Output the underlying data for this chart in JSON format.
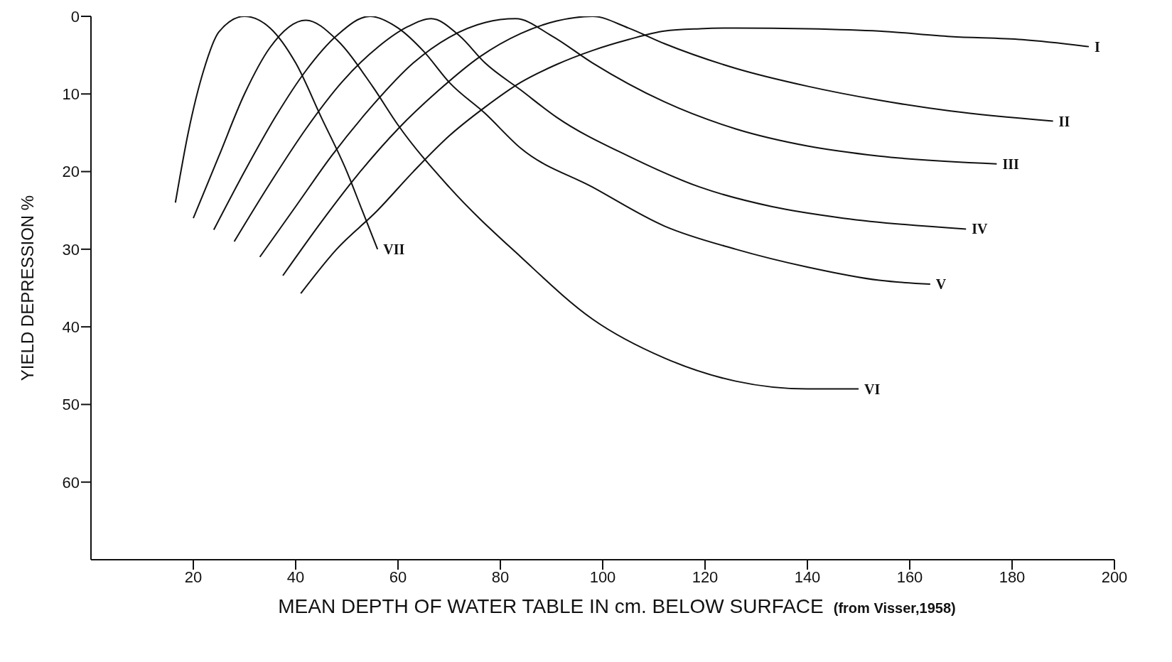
{
  "chart_data": {
    "type": "line",
    "xlabel": "MEAN DEPTH OF WATER TABLE IN cm. BELOW SURFACE",
    "ylabel": "YIELD DEPRESSION %",
    "annotations": [
      "(from Visser,1958)"
    ],
    "xlim": [
      0,
      200
    ],
    "xticks": [
      20,
      40,
      60,
      80,
      100,
      120,
      140,
      160,
      180,
      200
    ],
    "ylim": [
      70,
      0
    ],
    "yticks": [
      0,
      10,
      20,
      30,
      40,
      50,
      60
    ],
    "grid": false,
    "legend": false,
    "marker": "none",
    "line_style": "solid",
    "series": [
      {
        "name": "I",
        "color": "#111111",
        "x": [
          41,
          48,
          56,
          63,
          70,
          77,
          84,
          91,
          98,
          105,
          112,
          119,
          126,
          140,
          154,
          168,
          182,
          195
        ],
        "values": [
          35.7,
          30,
          25,
          20,
          15.4,
          11.7,
          8.5,
          6.2,
          4.4,
          3,
          1.9,
          1.6,
          1.5,
          1.6,
          1.9,
          2.6,
          3,
          3.9
        ]
      },
      {
        "name": "II",
        "color": "#111111",
        "x": [
          37.5,
          45,
          52,
          60,
          68,
          76,
          84,
          91,
          98,
          105,
          112,
          126,
          140,
          154,
          168,
          188
        ],
        "values": [
          33.4,
          26.5,
          20.5,
          14.5,
          9.5,
          5.2,
          2.2,
          0.6,
          0,
          1.5,
          3.5,
          6.7,
          9,
          10.8,
          12.2,
          13.5
        ]
      },
      {
        "name": "III",
        "color": "#111111",
        "x": [
          33,
          40,
          47,
          55,
          63,
          70,
          77,
          83,
          90,
          98,
          112,
          126,
          140,
          154,
          177
        ],
        "values": [
          31,
          24.5,
          18,
          11.5,
          6,
          2.7,
          0.8,
          0.3,
          2.5,
          6,
          11,
          14.5,
          16.7,
          18,
          19
        ]
      },
      {
        "name": "IV",
        "color": "#111111",
        "x": [
          28,
          35,
          42,
          49,
          56,
          62,
          66.5,
          72,
          77,
          84,
          91,
          105,
          119,
          133,
          147,
          171
        ],
        "values": [
          29,
          21.5,
          14.5,
          8.5,
          4,
          1.3,
          0.3,
          2.5,
          6,
          9.5,
          13,
          18,
          22,
          24.5,
          26,
          27.4
        ]
      },
      {
        "name": "V",
        "color": "#111111",
        "x": [
          24,
          30,
          36,
          42,
          48,
          54.5,
          60,
          65,
          70,
          77,
          84,
          98,
          112,
          126,
          140,
          154,
          164
        ],
        "values": [
          27.5,
          20,
          13,
          7,
          2.5,
          0,
          1.5,
          4.5,
          8.5,
          12.5,
          17,
          22,
          27,
          30,
          32.3,
          34,
          34.5
        ]
      },
      {
        "name": "VI",
        "color": "#111111",
        "x": [
          20,
          25,
          30,
          35,
          42,
          48,
          55,
          60,
          70,
          84,
          98,
          112,
          126,
          140,
          150
        ],
        "values": [
          26,
          18,
          10,
          4,
          0.5,
          3,
          9,
          14,
          22,
          31,
          39,
          44,
          47,
          48,
          48
        ]
      },
      {
        "name": "VII",
        "color": "#111111",
        "x": [
          16.5,
          19,
          22,
          25,
          30,
          35,
          40,
          45,
          50,
          53,
          56
        ],
        "values": [
          24,
          15,
          7,
          2,
          0,
          1.5,
          6,
          13,
          20,
          25,
          30
        ]
      }
    ]
  }
}
